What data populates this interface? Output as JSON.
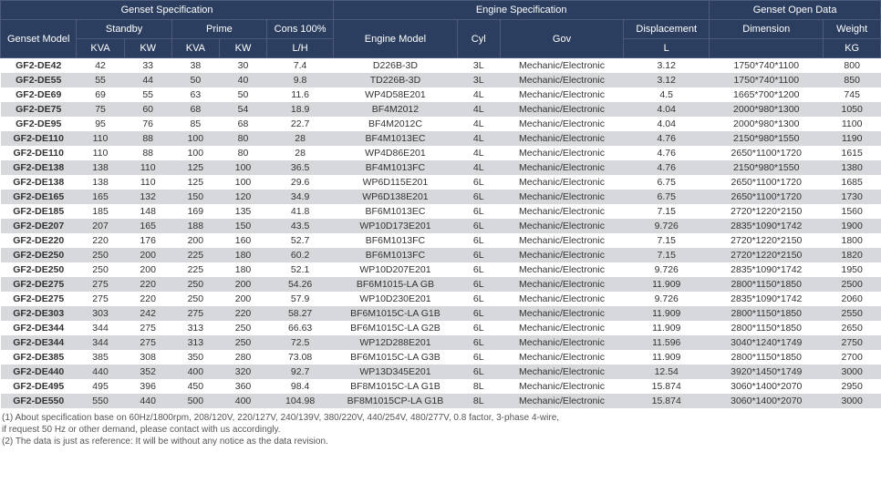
{
  "colors": {
    "header_bg": "#2c3e5f",
    "header_border": "#4a5b7a",
    "row_odd": "#ffffff",
    "row_even": "#d7d8db",
    "text": "#333333",
    "notes_text": "#555555"
  },
  "headers": {
    "group1": "Genset Specification",
    "group2": "Engine Specification",
    "group3": "Genset Open Data",
    "genset_model": "Genset Model",
    "standby": "Standby",
    "prime": "Prime",
    "cons": "Cons 100%",
    "engine_model": "Engine Model",
    "cyl": "Cyl",
    "gov": "Gov",
    "disp": "Displacement",
    "dimension": "Dimension",
    "weight": "Weight",
    "kva": "KVA",
    "kw": "KW",
    "lh": "L/H",
    "l": "L",
    "kg": "KG"
  },
  "rows": [
    {
      "model": "GF2-DE42",
      "skva": "42",
      "skw": "33",
      "pkva": "38",
      "pkw": "30",
      "cons": "7.4",
      "eng": "D226B-3D",
      "cyl": "3L",
      "gov": "Mechanic/Electronic",
      "disp": "3.12",
      "dim": "1750*740*1100",
      "wt": "800"
    },
    {
      "model": "GF2-DE55",
      "skva": "55",
      "skw": "44",
      "pkva": "50",
      "pkw": "40",
      "cons": "9.8",
      "eng": "TD226B-3D",
      "cyl": "3L",
      "gov": "Mechanic/Electronic",
      "disp": "3.12",
      "dim": "1750*740*1100",
      "wt": "850"
    },
    {
      "model": "GF2-DE69",
      "skva": "69",
      "skw": "55",
      "pkva": "63",
      "pkw": "50",
      "cons": "11.6",
      "eng": "WP4D58E201",
      "cyl": "4L",
      "gov": "Mechanic/Electronic",
      "disp": "4.5",
      "dim": "1665*700*1200",
      "wt": "745"
    },
    {
      "model": "GF2-DE75",
      "skva": "75",
      "skw": "60",
      "pkva": "68",
      "pkw": "54",
      "cons": "18.9",
      "eng": "BF4M2012",
      "cyl": "4L",
      "gov": "Mechanic/Electronic",
      "disp": "4.04",
      "dim": "2000*980*1300",
      "wt": "1050"
    },
    {
      "model": "GF2-DE95",
      "skva": "95",
      "skw": "76",
      "pkva": "85",
      "pkw": "68",
      "cons": "22.7",
      "eng": "BF4M2012C",
      "cyl": "4L",
      "gov": "Mechanic/Electronic",
      "disp": "4.04",
      "dim": "2000*980*1300",
      "wt": "1100"
    },
    {
      "model": "GF2-DE110",
      "skva": "110",
      "skw": "88",
      "pkva": "100",
      "pkw": "80",
      "cons": "28",
      "eng": "BF4M1013EC",
      "cyl": "4L",
      "gov": "Mechanic/Electronic",
      "disp": "4.76",
      "dim": "2150*980*1550",
      "wt": "1190"
    },
    {
      "model": "GF2-DE110",
      "skva": "110",
      "skw": "88",
      "pkva": "100",
      "pkw": "80",
      "cons": "28",
      "eng": "WP4D86E201",
      "cyl": "4L",
      "gov": "Mechanic/Electronic",
      "disp": "4.76",
      "dim": "2650*1100*1720",
      "wt": "1615"
    },
    {
      "model": "GF2-DE138",
      "skva": "138",
      "skw": "110",
      "pkva": "125",
      "pkw": "100",
      "cons": "36.5",
      "eng": "BF4M1013FC",
      "cyl": "4L",
      "gov": "Mechanic/Electronic",
      "disp": "4.76",
      "dim": "2150*980*1550",
      "wt": "1380"
    },
    {
      "model": "GF2-DE138",
      "skva": "138",
      "skw": "110",
      "pkva": "125",
      "pkw": "100",
      "cons": "29.6",
      "eng": "WP6D115E201",
      "cyl": "6L",
      "gov": "Mechanic/Electronic",
      "disp": "6.75",
      "dim": "2650*1100*1720",
      "wt": "1685"
    },
    {
      "model": "GF2-DE165",
      "skva": "165",
      "skw": "132",
      "pkva": "150",
      "pkw": "120",
      "cons": "34.9",
      "eng": "WP6D138E201",
      "cyl": "6L",
      "gov": "Mechanic/Electronic",
      "disp": "6.75",
      "dim": "2650*1100*1720",
      "wt": "1730"
    },
    {
      "model": "GF2-DE185",
      "skva": "185",
      "skw": "148",
      "pkva": "169",
      "pkw": "135",
      "cons": "41.8",
      "eng": "BF6M1013EC",
      "cyl": "6L",
      "gov": "Mechanic/Electronic",
      "disp": "7.15",
      "dim": "2720*1220*2150",
      "wt": "1560"
    },
    {
      "model": "GF2-DE207",
      "skva": "207",
      "skw": "165",
      "pkva": "188",
      "pkw": "150",
      "cons": "43.5",
      "eng": "WP10D173E201",
      "cyl": "6L",
      "gov": "Mechanic/Electronic",
      "disp": "9.726",
      "dim": "2835*1090*1742",
      "wt": "1900"
    },
    {
      "model": "GF2-DE220",
      "skva": "220",
      "skw": "176",
      "pkva": "200",
      "pkw": "160",
      "cons": "52.7",
      "eng": "BF6M1013FC",
      "cyl": "6L",
      "gov": "Mechanic/Electronic",
      "disp": "7.15",
      "dim": "2720*1220*2150",
      "wt": "1800"
    },
    {
      "model": "GF2-DE250",
      "skva": "250",
      "skw": "200",
      "pkva": "225",
      "pkw": "180",
      "cons": "60.2",
      "eng": "BF6M1013FC",
      "cyl": "6L",
      "gov": "Mechanic/Electronic",
      "disp": "7.15",
      "dim": "2720*1220*2150",
      "wt": "1820"
    },
    {
      "model": "GF2-DE250",
      "skva": "250",
      "skw": "200",
      "pkva": "225",
      "pkw": "180",
      "cons": "52.1",
      "eng": "WP10D207E201",
      "cyl": "6L",
      "gov": "Mechanic/Electronic",
      "disp": "9.726",
      "dim": "2835*1090*1742",
      "wt": "1950"
    },
    {
      "model": "GF2-DE275",
      "skva": "275",
      "skw": "220",
      "pkva": "250",
      "pkw": "200",
      "cons": "54.26",
      "eng": "BF6M1015-LA GB",
      "cyl": "6L",
      "gov": "Mechanic/Electronic",
      "disp": "11.909",
      "dim": "2800*1150*1850",
      "wt": "2500"
    },
    {
      "model": "GF2-DE275",
      "skva": "275",
      "skw": "220",
      "pkva": "250",
      "pkw": "200",
      "cons": "57.9",
      "eng": "WP10D230E201",
      "cyl": "6L",
      "gov": "Mechanic/Electronic",
      "disp": "9.726",
      "dim": "2835*1090*1742",
      "wt": "2060"
    },
    {
      "model": "GF2-DE303",
      "skva": "303",
      "skw": "242",
      "pkva": "275",
      "pkw": "220",
      "cons": "58.27",
      "eng": "BF6M1015C-LA G1B",
      "cyl": "6L",
      "gov": "Mechanic/Electronic",
      "disp": "11.909",
      "dim": "2800*1150*1850",
      "wt": "2550"
    },
    {
      "model": "GF2-DE344",
      "skva": "344",
      "skw": "275",
      "pkva": "313",
      "pkw": "250",
      "cons": "66.63",
      "eng": "BF6M1015C-LA G2B",
      "cyl": "6L",
      "gov": "Mechanic/Electronic",
      "disp": "11.909",
      "dim": "2800*1150*1850",
      "wt": "2650"
    },
    {
      "model": "GF2-DE344",
      "skva": "344",
      "skw": "275",
      "pkva": "313",
      "pkw": "250",
      "cons": "72.5",
      "eng": "WP12D288E201",
      "cyl": "6L",
      "gov": "Mechanic/Electronic",
      "disp": "11.596",
      "dim": "3040*1240*1749",
      "wt": "2750"
    },
    {
      "model": "GF2-DE385",
      "skva": "385",
      "skw": "308",
      "pkva": "350",
      "pkw": "280",
      "cons": "73.08",
      "eng": "BF6M1015C-LA G3B",
      "cyl": "6L",
      "gov": "Mechanic/Electronic",
      "disp": "11.909",
      "dim": "2800*1150*1850",
      "wt": "2700"
    },
    {
      "model": "GF2-DE440",
      "skva": "440",
      "skw": "352",
      "pkva": "400",
      "pkw": "320",
      "cons": "92.7",
      "eng": "WP13D345E201",
      "cyl": "6L",
      "gov": "Mechanic/Electronic",
      "disp": "12.54",
      "dim": "3920*1450*1749",
      "wt": "3000"
    },
    {
      "model": "GF2-DE495",
      "skva": "495",
      "skw": "396",
      "pkva": "450",
      "pkw": "360",
      "cons": "98.4",
      "eng": "BF8M1015C-LA G1B",
      "cyl": "8L",
      "gov": "Mechanic/Electronic",
      "disp": "15.874",
      "dim": "3060*1400*2070",
      "wt": "2950"
    },
    {
      "model": "GF2-DE550",
      "skva": "550",
      "skw": "440",
      "pkva": "500",
      "pkw": "400",
      "cons": "104.98",
      "eng": "BF8M1015CP-LA G1B",
      "cyl": "8L",
      "gov": "Mechanic/Electronic",
      "disp": "15.874",
      "dim": "3060*1400*2070",
      "wt": "3000"
    }
  ],
  "notes": {
    "n1a": "(1) About specification base on 60Hz/1800rpm, 208/120V, 220/127V, 240/139V, 380/220V, 440/254V, 480/277V, 0.8 factor, 3-phase 4-wire,",
    "n1b": "    if request 50 Hz or other demand, please contact with us accordingly.",
    "n2": "(2) The data is just as reference: It will be without any notice as the data revision."
  }
}
